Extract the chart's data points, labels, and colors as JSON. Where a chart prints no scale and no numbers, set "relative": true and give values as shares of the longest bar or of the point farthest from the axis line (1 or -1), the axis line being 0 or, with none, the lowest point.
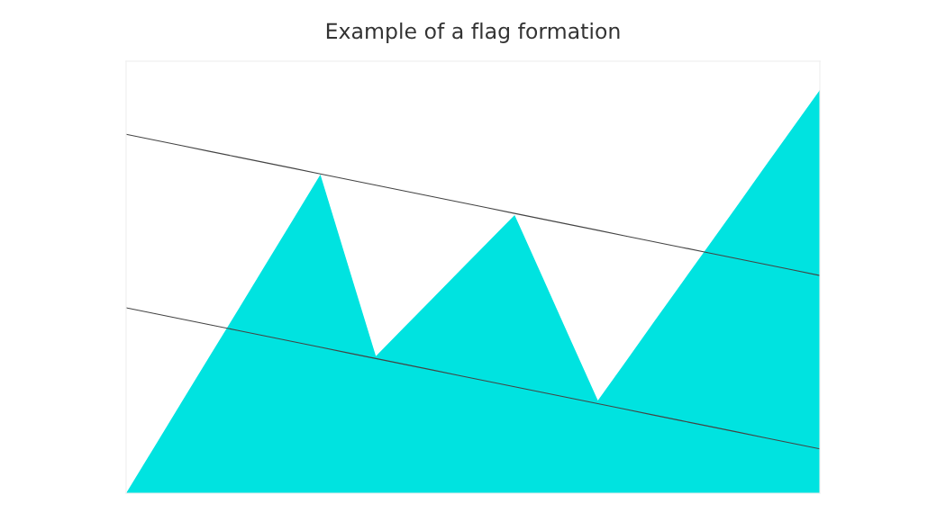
{
  "chart_data": {
    "type": "area",
    "title": "Example of a flag formation",
    "relative": true,
    "categories": [
      null,
      null,
      null,
      null,
      null,
      null,
      null,
      null,
      null,
      null,
      null,
      null,
      null,
      null,
      null,
      null,
      null,
      null,
      null,
      null,
      null,
      null,
      null,
      null,
      null,
      null
    ],
    "series": [
      {
        "color": "#00e3e0",
        "values": [
          0,
          0.113,
          0.226,
          0.339,
          0.451,
          0.564,
          0.677,
          0.79,
          0.565,
          0.34,
          0.41,
          0.48,
          0.55,
          0.62,
          0.69,
          0.537,
          0.383,
          0.23,
          0.326,
          0.423,
          0.519,
          0.615,
          0.711,
          0.808,
          0.904,
          1.0
        ]
      },
      {
        "type": "line",
        "color": "#444444",
        "values": [
          0.89,
          0.876,
          0.862,
          0.848,
          0.834,
          0.82,
          0.806,
          0.792,
          0.778,
          0.764,
          0.75,
          0.736,
          0.722,
          0.708,
          0.694,
          0.68,
          0.666,
          0.652,
          0.638,
          0.624,
          0.61,
          0.596,
          0.582,
          0.568,
          0.554,
          0.54
        ]
      },
      {
        "type": "line",
        "color": "#444444",
        "values": [
          0.46,
          0.446,
          0.432,
          0.418,
          0.404,
          0.39,
          0.376,
          0.362,
          0.348,
          0.334,
          0.32,
          0.306,
          0.292,
          0.278,
          0.264,
          0.25,
          0.236,
          0.222,
          0.208,
          0.194,
          0.18,
          0.166,
          0.152,
          0.138,
          0.124,
          0.11
        ]
      }
    ]
  }
}
